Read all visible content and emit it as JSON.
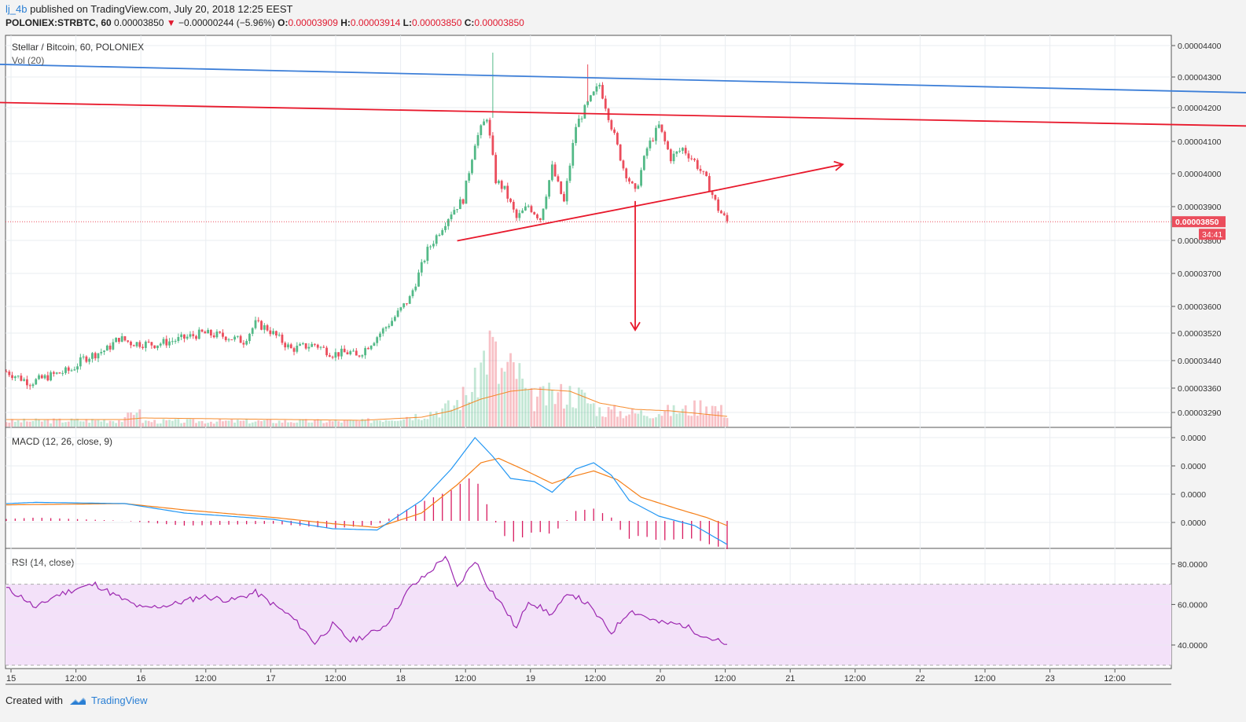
{
  "header": {
    "user": "lj_4b",
    "published": "published on TradingView.com, July 20, 2018 12:25 EEST",
    "symbol_line": "POLONIEX:STRBTC, 60",
    "last": "0.00003850",
    "change": "−0.00000244 (−5.96%)",
    "o_label": "O:",
    "o": "0.00003909",
    "h_label": "H:",
    "h": "0.00003914",
    "l_label": "L:",
    "l": "0.00003850",
    "c_label": "C:",
    "c": "0.00003850"
  },
  "footer": {
    "created": "Created with",
    "brand": "TradingView"
  },
  "colors": {
    "up": "#53b987",
    "down": "#eb4d5c",
    "blue_line": "#3d7fd8",
    "red_line": "#e8192c",
    "macd": "#2196f3",
    "signal": "#f57f17",
    "hist": "#d81b60",
    "rsi": "#9c27b0",
    "rsi_band": "#f3e1f9"
  },
  "chart_data": [
    {
      "type": "candlestick",
      "title": "Stellar / Bitcoin, 60, POLONIEX",
      "volume_label": "Vol (20)",
      "x_ticks": [
        "15",
        "12:00",
        "16",
        "12:00",
        "17",
        "12:00",
        "18",
        "12:00",
        "19",
        "12:00",
        "20",
        "12:00",
        "21",
        "12:00",
        "22",
        "12:00",
        "23",
        "12:00"
      ],
      "y_ticks": [
        "0.00004400",
        "0.00004300",
        "0.00004200",
        "0.00004100",
        "0.00004000",
        "0.00003900",
        "0.00003800",
        "0.00003700",
        "0.00003600",
        "0.00003520",
        "0.00003440",
        "0.00003360",
        "0.00003290"
      ],
      "last_price_label": "0.00003850",
      "countdown_label": "34:41",
      "close_anchors": [
        [
          0,
          3380
        ],
        [
          8,
          3345
        ],
        [
          16,
          3370
        ],
        [
          22,
          3385
        ],
        [
          26,
          3420
        ],
        [
          34,
          3450
        ],
        [
          38,
          3485
        ],
        [
          42,
          3470
        ],
        [
          50,
          3465
        ],
        [
          58,
          3480
        ],
        [
          66,
          3500
        ],
        [
          74,
          3490
        ],
        [
          80,
          3475
        ],
        [
          84,
          3530
        ],
        [
          88,
          3515
        ],
        [
          96,
          3450
        ],
        [
          104,
          3465
        ],
        [
          110,
          3435
        ],
        [
          116,
          3440
        ],
        [
          118,
          3425
        ],
        [
          124,
          3480
        ],
        [
          130,
          3540
        ],
        [
          136,
          3610
        ],
        [
          142,
          3760
        ],
        [
          150,
          3880
        ],
        [
          154,
          3920
        ],
        [
          158,
          4100
        ],
        [
          162,
          4180
        ],
        [
          165,
          3980
        ],
        [
          168,
          3950
        ],
        [
          172,
          3860
        ],
        [
          176,
          3900
        ],
        [
          180,
          3860
        ],
        [
          184,
          4020
        ],
        [
          188,
          3910
        ],
        [
          192,
          4150
        ],
        [
          196,
          4220
        ],
        [
          200,
          4280
        ],
        [
          204,
          4150
        ],
        [
          208,
          4020
        ],
        [
          212,
          3940
        ],
        [
          216,
          4080
        ],
        [
          220,
          4150
        ],
        [
          224,
          4050
        ],
        [
          228,
          4080
        ],
        [
          232,
          4040
        ],
        [
          236,
          3980
        ],
        [
          240,
          3890
        ],
        [
          243,
          3850
        ]
      ],
      "trend_lines": [
        {
          "color": "blue",
          "from": [
            -8,
            4345
          ],
          "to": [
            432,
            4252
          ]
        },
        {
          "color": "red",
          "from": [
            -8,
            4225
          ],
          "to": [
            432,
            4148
          ]
        },
        {
          "color": "red",
          "from": [
            152,
            3790
          ],
          "to": [
            240,
            3950
          ],
          "arrow_to": [
            282,
            4030
          ]
        },
        {
          "color": "red",
          "from": [
            212,
            3915
          ],
          "to": [
            212,
            3510
          ],
          "arrow": true
        }
      ]
    },
    {
      "type": "line",
      "title": "MACD (12, 26, close, 9)",
      "y_ticks": [
        "0.0000",
        "0.0000",
        "0.0000",
        "0.0000"
      ],
      "macd_anchors": [
        [
          0,
          0.3
        ],
        [
          10,
          0.32
        ],
        [
          40,
          0.3
        ],
        [
          60,
          0.15
        ],
        [
          90,
          0.05
        ],
        [
          110,
          -0.1
        ],
        [
          125,
          -0.12
        ],
        [
          140,
          0.35
        ],
        [
          150,
          0.85
        ],
        [
          158,
          1.35
        ],
        [
          164,
          1.05
        ],
        [
          170,
          0.7
        ],
        [
          178,
          0.65
        ],
        [
          184,
          0.48
        ],
        [
          192,
          0.85
        ],
        [
          198,
          0.95
        ],
        [
          204,
          0.75
        ],
        [
          210,
          0.35
        ],
        [
          220,
          0.1
        ],
        [
          232,
          -0.05
        ],
        [
          243,
          -0.35
        ]
      ],
      "signal_anchors": [
        [
          0,
          0.28
        ],
        [
          40,
          0.3
        ],
        [
          60,
          0.2
        ],
        [
          90,
          0.08
        ],
        [
          110,
          -0.02
        ],
        [
          125,
          -0.08
        ],
        [
          140,
          0.15
        ],
        [
          152,
          0.6
        ],
        [
          160,
          0.95
        ],
        [
          166,
          1.02
        ],
        [
          174,
          0.85
        ],
        [
          184,
          0.62
        ],
        [
          190,
          0.72
        ],
        [
          198,
          0.82
        ],
        [
          206,
          0.68
        ],
        [
          214,
          0.4
        ],
        [
          226,
          0.22
        ],
        [
          236,
          0.08
        ],
        [
          243,
          -0.05
        ]
      ]
    },
    {
      "type": "line",
      "title": "RSI (14, close)",
      "y_ticks": [
        "80.0000",
        "60.0000",
        "40.0000"
      ],
      "band": [
        30,
        70
      ],
      "rsi_anchors": [
        [
          0,
          68
        ],
        [
          6,
          63
        ],
        [
          10,
          58
        ],
        [
          16,
          64
        ],
        [
          24,
          68
        ],
        [
          30,
          70
        ],
        [
          36,
          65
        ],
        [
          40,
          62
        ],
        [
          46,
          58
        ],
        [
          56,
          60
        ],
        [
          66,
          64
        ],
        [
          76,
          62
        ],
        [
          84,
          66
        ],
        [
          92,
          58
        ],
        [
          96,
          54
        ],
        [
          100,
          48
        ],
        [
          104,
          41
        ],
        [
          110,
          50
        ],
        [
          116,
          42
        ],
        [
          122,
          45
        ],
        [
          128,
          50
        ],
        [
          136,
          68
        ],
        [
          142,
          75
        ],
        [
          148,
          84
        ],
        [
          152,
          68
        ],
        [
          158,
          82
        ],
        [
          162,
          70
        ],
        [
          168,
          58
        ],
        [
          172,
          48
        ],
        [
          176,
          62
        ],
        [
          184,
          55
        ],
        [
          190,
          66
        ],
        [
          196,
          60
        ],
        [
          200,
          53
        ],
        [
          204,
          46
        ],
        [
          210,
          57
        ],
        [
          214,
          55
        ],
        [
          220,
          51
        ],
        [
          228,
          50
        ],
        [
          236,
          44
        ],
        [
          240,
          42
        ],
        [
          243,
          39
        ]
      ]
    }
  ]
}
